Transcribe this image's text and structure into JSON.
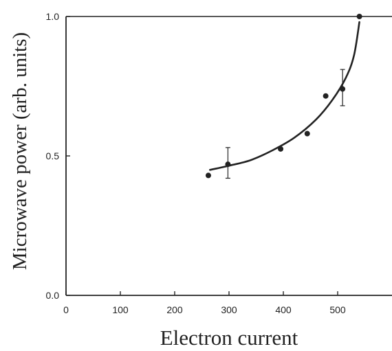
{
  "chart_data": {
    "type": "scatter",
    "title": "",
    "xlabel": "Electron current",
    "ylabel": "Microwave power (arb. units)",
    "xlim": [
      0,
      600
    ],
    "ylim": [
      0,
      1.0
    ],
    "x_ticks": [
      0,
      100,
      200,
      300,
      400,
      500
    ],
    "x_tick_labels": [
      "0",
      "100",
      "200",
      "300",
      "400",
      "500"
    ],
    "y_ticks": [
      0.0,
      0.5,
      1.0
    ],
    "y_tick_labels": [
      "0.0",
      "0.5",
      "1.0"
    ],
    "grid": false,
    "series": [
      {
        "kind": "points",
        "x": [
          262,
          298,
          395,
          444,
          478,
          509,
          540
        ],
        "y": [
          0.43,
          0.47,
          0.525,
          0.58,
          0.715,
          0.74,
          1.0
        ]
      },
      {
        "kind": "fit-line",
        "x": [
          265,
          300,
          340,
          380,
          420,
          460,
          490,
          515,
          530,
          540
        ],
        "y": [
          0.45,
          0.465,
          0.485,
          0.52,
          0.565,
          0.63,
          0.7,
          0.78,
          0.86,
          0.98
        ]
      }
    ],
    "error_bars": [
      {
        "x": 298,
        "y": 0.47,
        "low": 0.42,
        "high": 0.53
      },
      {
        "x": 509,
        "y": 0.74,
        "low": 0.68,
        "high": 0.81
      }
    ]
  },
  "colors": {
    "ink": "#222222",
    "background": "#ffffff"
  }
}
